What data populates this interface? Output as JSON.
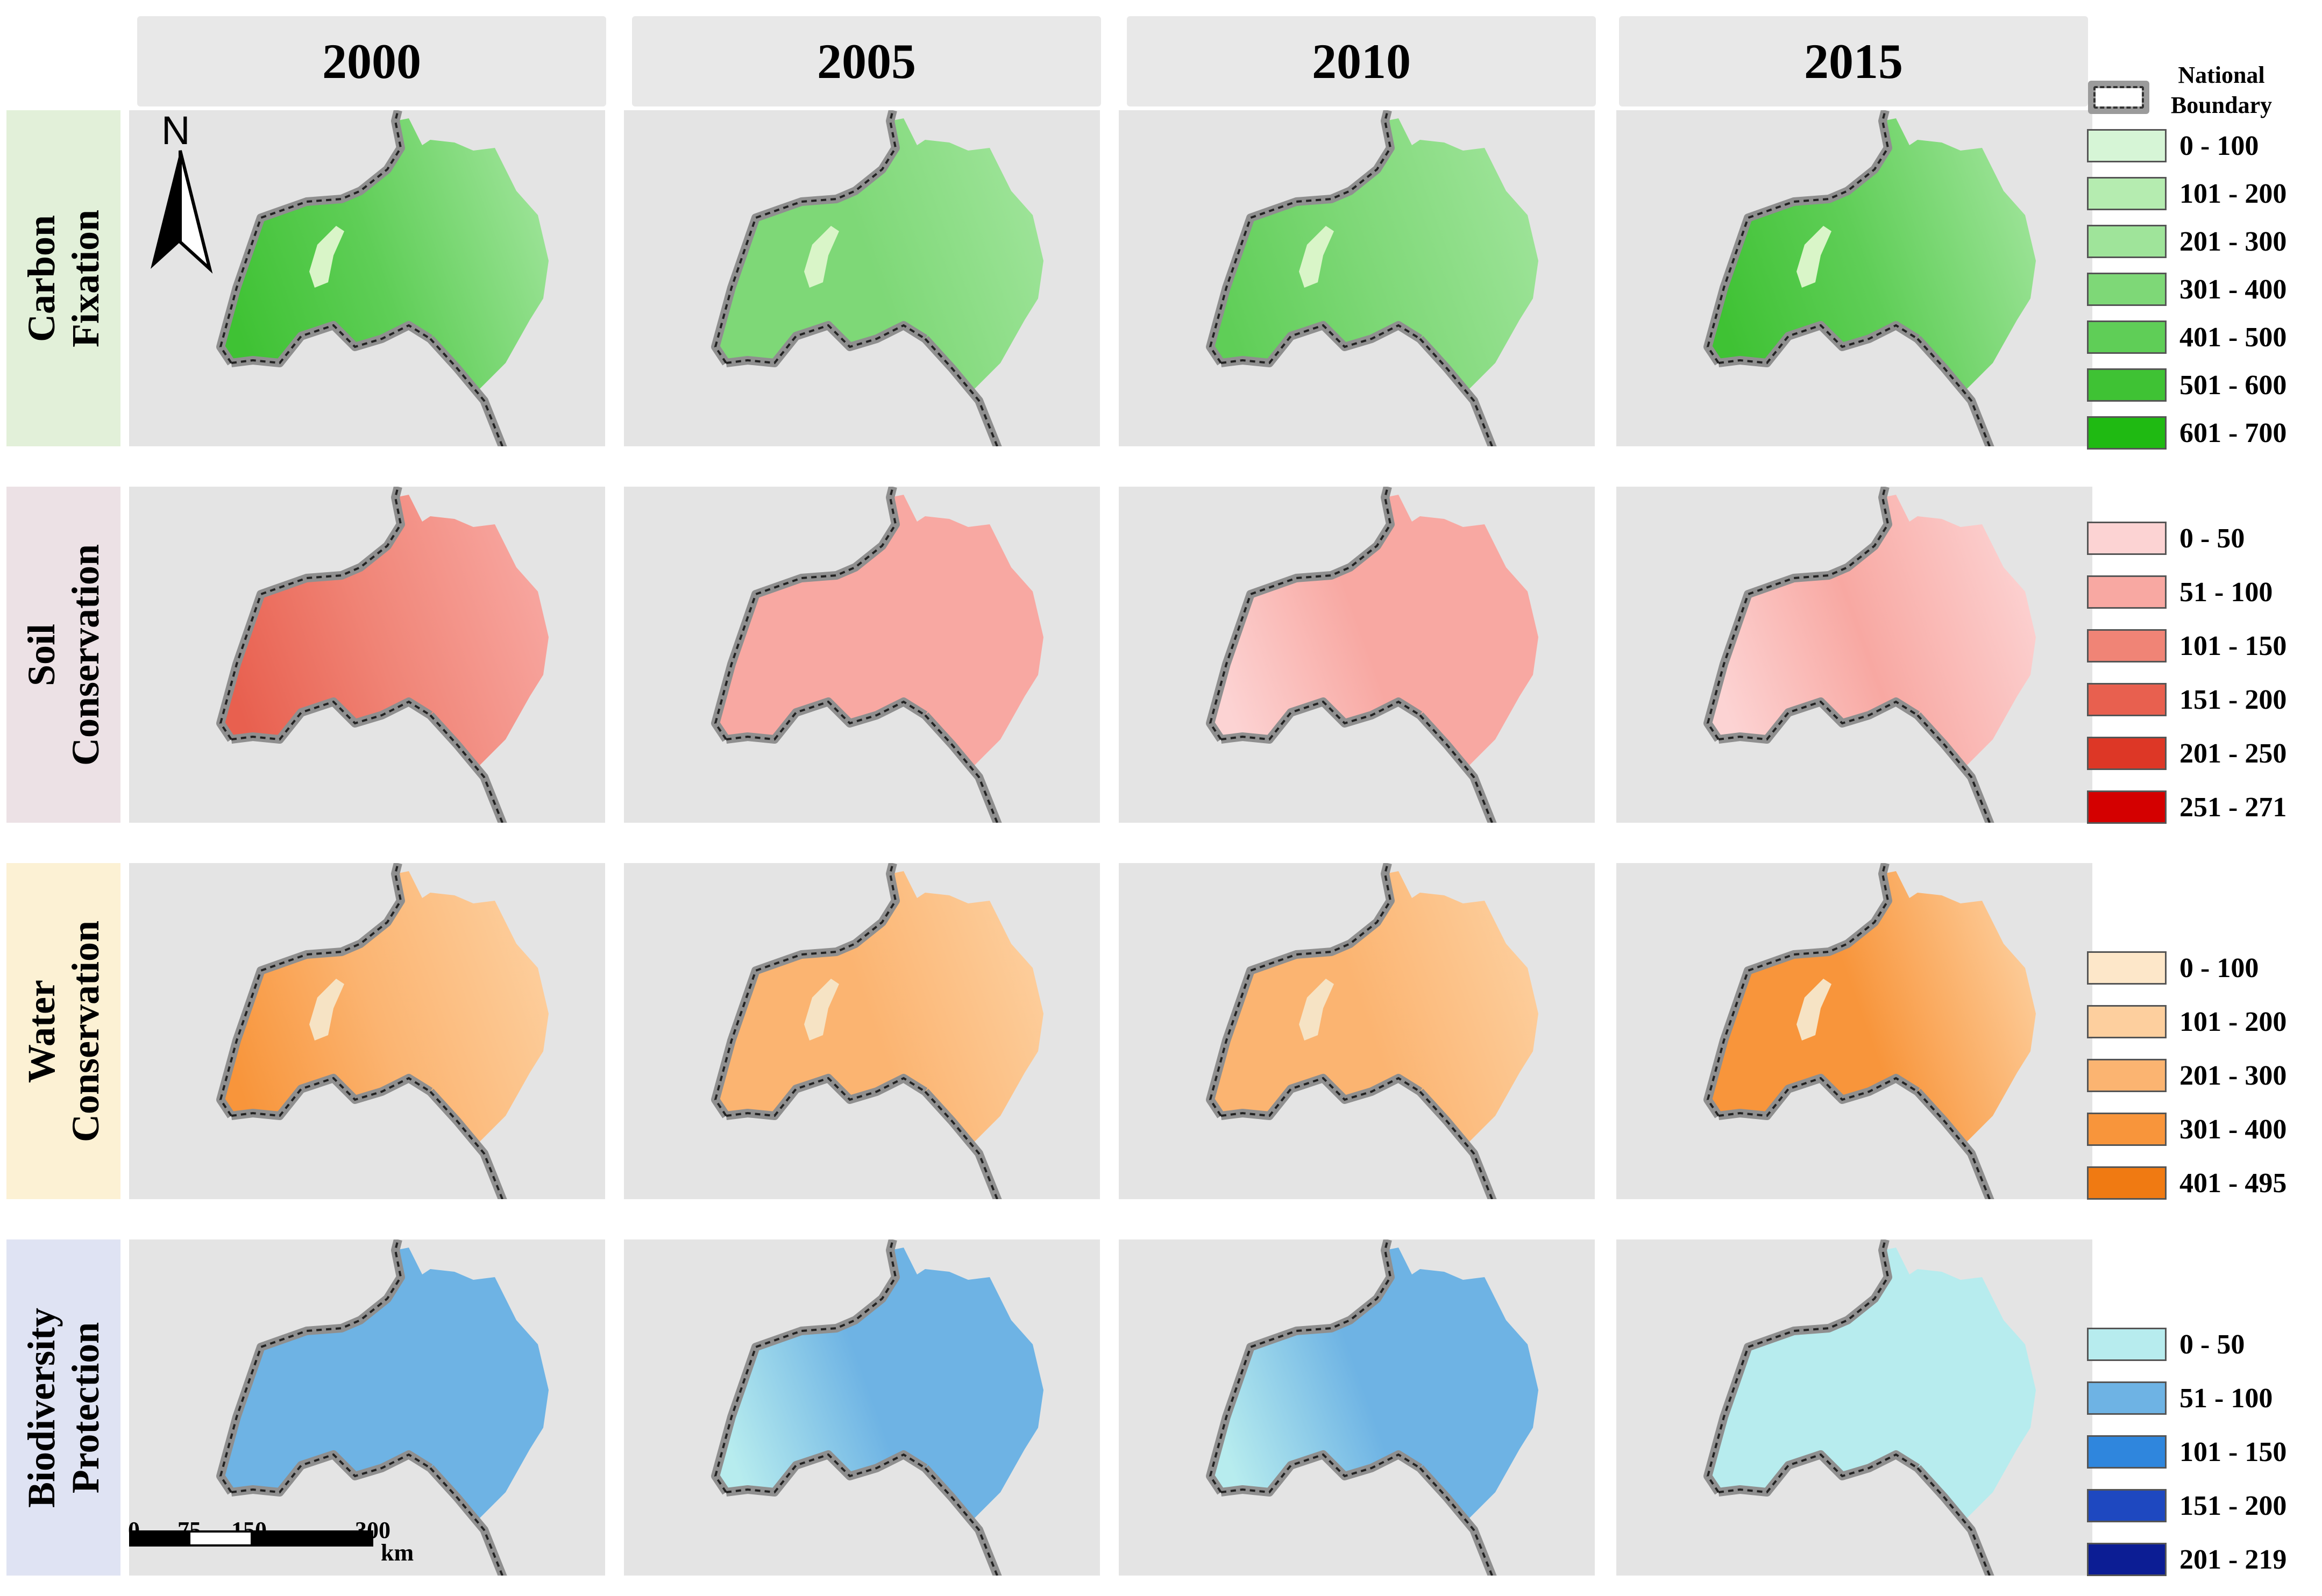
{
  "years": [
    "2000",
    "2005",
    "2010",
    "2015"
  ],
  "rows": [
    {
      "label": "Carbon\nFixation",
      "bg": "#e2f0d9",
      "ramp": [
        "#d6f5d6",
        "#b5ecb0",
        "#9fe49a",
        "#7ed877",
        "#5fce57",
        "#3fc234",
        "#1fba12"
      ]
    },
    {
      "label": "Soil\nConservation",
      "bg": "#ece1e5",
      "ramp": [
        "#fcd3d3",
        "#f8a8a2",
        "#f08476",
        "#e8604f",
        "#dd3726",
        "#d40000"
      ]
    },
    {
      "label": "Water\nConservation",
      "bg": "#fcf1d4",
      "ramp": [
        "#fde7c9",
        "#fdcf9e",
        "#fbb471",
        "#f8953b",
        "#f07a12"
      ]
    },
    {
      "label": "Biodiversity\nProtection",
      "bg": "#dfe3f3",
      "ramp": [
        "#b7ecee",
        "#6eb3e4",
        "#2f86dd",
        "#1e48c0",
        "#0c1d94"
      ]
    }
  ],
  "legend": {
    "boundary_label": "National\nBoundary",
    "carbon": [
      "0 - 100",
      "101 - 200",
      "201 - 300",
      "301 - 400",
      "401 - 500",
      "501 - 600",
      "601 - 700"
    ],
    "soil": [
      "0 - 50",
      "51 - 100",
      "101 - 150",
      "151 - 200",
      "201 - 250",
      "251 - 271"
    ],
    "water": [
      "0 - 100",
      "101 - 200",
      "201 - 300",
      "301 - 400",
      "401 - 495"
    ],
    "bio": [
      "0 - 50",
      "51 - 100",
      "101 - 150",
      "151 - 200",
      "201 - 219"
    ]
  },
  "north_label": "N",
  "scale": {
    "ticks": [
      "0",
      "75",
      "150",
      "300"
    ],
    "unit": "km"
  },
  "panel_intensity": [
    [
      [
        0.75,
        0.55
      ],
      [
        0.55,
        0.45
      ],
      [
        0.6,
        0.5
      ],
      [
        0.8,
        0.45
      ]
    ],
    [
      [
        0.55,
        0.35
      ],
      [
        0.1,
        0.3
      ],
      [
        0.0,
        0.25
      ],
      [
        0.05,
        0.15
      ]
    ],
    [
      [
        0.75,
        0.45
      ],
      [
        0.6,
        0.5
      ],
      [
        0.6,
        0.55
      ],
      [
        0.85,
        0.45
      ]
    ],
    [
      [
        0.35,
        0.3
      ],
      [
        0.05,
        0.35
      ],
      [
        0.0,
        0.4
      ],
      [
        0.0,
        0.15
      ]
    ]
  ]
}
